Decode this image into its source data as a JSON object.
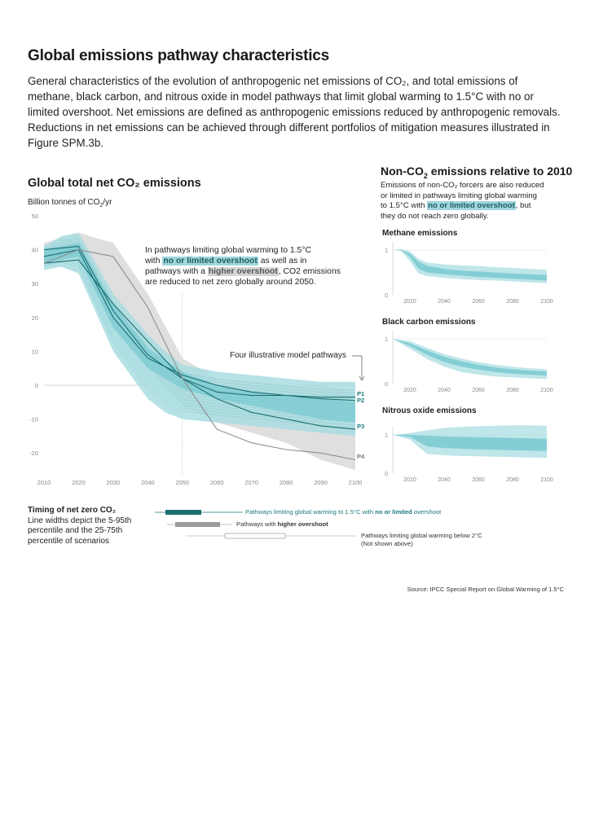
{
  "header": {
    "title": "Global emissions pathway characteristics",
    "intro": "General characteristics of the evolution of anthropogenic net emissions of CO₂, and total emissions of methane, black carbon, and nitrous oxide in model pathways that limit global warming to 1.5°C with no or limited overshoot. Net emissions are defined as anthropogenic emissions reduced by anthropogenic removals. Reductions in net emissions can be achieved through different portfolios of mitigation measures illustrated in Figure SPM.3b."
  },
  "co2_panel": {
    "title": "Global total net CO₂ emissions",
    "unit_prefix": "Billion tonnes of CO",
    "unit_sub": "2",
    "unit_suffix": "/yr",
    "annotation": {
      "line1": "In pathways limiting global warming to 1.5°C",
      "line2_pre": "with ",
      "line2_hl": "no or limited overshoot",
      "line2_post": " as well as in",
      "line3_pre": "pathways with a ",
      "line3_hl": "higher overshoot",
      "line3_post": ", CO2 emissions",
      "line4": "are reduced to net zero globally around 2050."
    },
    "pathways_label": "Four illustrative model pathways"
  },
  "nonco2_panel": {
    "title_pre": "Non-CO",
    "title_sub": "2",
    "title_post": " emissions relative to 2010",
    "desc_line1": "Emissions of non-CO₂ forcers are also reduced",
    "desc_line2": "or limited in pathways limiting global warming",
    "desc_line3_pre": "to 1.5°C with ",
    "desc_line3_hl": "no or limited overshoot",
    "desc_line3_post": ", but",
    "desc_line4": "they do not reach zero globally.",
    "methane_title": "Methane emissions",
    "bc_title": "Black carbon emissions",
    "n2o_title": "Nitrous oxide emissions"
  },
  "legend": {
    "title": "Timing of net zero CO₂",
    "desc_line1": "Line widths depict the 5-95th",
    "desc_line2": "percentile and the 25-75th",
    "desc_line3": "percentile of scenarios",
    "item1_pre": "Pathways limiting global warming to 1.5°C with ",
    "item1_bold": "no or limited",
    "item1_post": " overshoot",
    "item2_pre": "Pathways with ",
    "item2_bold": "higher overshoot",
    "item3_line1": "Pathways limiting global warming below 2°C",
    "item3_line2": "(Not shown above)"
  },
  "source": "Source: IPCC Special Report on Global Warming of 1.5°C",
  "colors": {
    "teal_light": "#a9dde2",
    "teal_mid": "#7ccbd2",
    "teal_dark": "#1b6f70",
    "grey_band": "#dcdcdc",
    "grey_line": "#8d8d8d"
  },
  "chart_data": [
    {
      "type": "area",
      "title": "Global total net CO₂ emissions",
      "ylabel": "Billion tonnes of CO₂/yr",
      "xlim": [
        2010,
        2100
      ],
      "ylim": [
        -25,
        50
      ],
      "x_ticks": [
        2010,
        2020,
        2030,
        2040,
        2050,
        2060,
        2070,
        2080,
        2090,
        2100
      ],
      "y_ticks": [
        -20,
        -10,
        0,
        10,
        20,
        30,
        40,
        50
      ],
      "bands": [
        {
          "name": "higher overshoot 5-95th",
          "color": "grey",
          "x": [
            2010,
            2020,
            2030,
            2040,
            2050,
            2060,
            2070,
            2080,
            2090,
            2100
          ],
          "low": [
            38,
            39,
            23,
            5,
            -6,
            -11,
            -14,
            -17,
            -22,
            -25
          ],
          "high": [
            42,
            45,
            42,
            27,
            8,
            2,
            1,
            0,
            0,
            -2
          ]
        },
        {
          "name": "no or limited overshoot 5-95th",
          "color": "teal_light",
          "x": [
            2010,
            2015,
            2020,
            2030,
            2040,
            2045,
            2050,
            2060,
            2070,
            2080,
            2090,
            2100
          ],
          "low": [
            34,
            35,
            33,
            10,
            -4,
            -8,
            -10,
            -11,
            -12,
            -13,
            -14,
            -15
          ],
          "high": [
            41,
            44,
            45,
            27,
            15,
            10,
            6,
            4,
            3,
            2,
            1,
            1
          ]
        },
        {
          "name": "no or limited overshoot 25-75th",
          "color": "teal_mid",
          "x": [
            2010,
            2020,
            2030,
            2040,
            2050,
            2060,
            2070,
            2080,
            2090,
            2100
          ],
          "low": [
            36,
            38,
            17,
            5,
            -1,
            -4,
            -6,
            -8,
            -10,
            -11
          ],
          "high": [
            40,
            42,
            24,
            11,
            4,
            0,
            -2,
            -3,
            -4,
            -5
          ]
        }
      ],
      "series": [
        {
          "name": "P1",
          "x": [
            2010,
            2020,
            2030,
            2040,
            2050,
            2060,
            2070,
            2080,
            2090,
            2100
          ],
          "values": [
            40,
            41,
            22,
            9,
            2,
            -2,
            -3,
            -3,
            -3.5,
            -3.5
          ]
        },
        {
          "name": "P2",
          "x": [
            2010,
            2020,
            2030,
            2040,
            2050,
            2060,
            2070,
            2080,
            2090,
            2100
          ],
          "values": [
            38,
            40,
            20,
            8,
            3,
            0,
            -2,
            -3,
            -4,
            -4.5
          ]
        },
        {
          "name": "P3",
          "x": [
            2010,
            2020,
            2030,
            2040,
            2050,
            2060,
            2070,
            2080,
            2090,
            2100
          ],
          "values": [
            36,
            37,
            24,
            13,
            2,
            -4,
            -8,
            -10,
            -12,
            -13
          ]
        },
        {
          "name": "P4",
          "x": [
            2010,
            2020,
            2030,
            2040,
            2050,
            2060,
            2070,
            2080,
            2090,
            2100
          ],
          "values": [
            36,
            40,
            38,
            23,
            2,
            -13,
            -17,
            -19,
            -20,
            -22
          ]
        }
      ]
    },
    {
      "type": "area",
      "title": "Methane emissions",
      "xlim": [
        2010,
        2100
      ],
      "ylim": [
        0,
        1
      ],
      "x_ticks": [
        2020,
        2040,
        2060,
        2080,
        2100
      ],
      "y_ticks": [
        0,
        1
      ],
      "bands": [
        {
          "name": "5-95th",
          "x": [
            2010,
            2015,
            2020,
            2025,
            2030,
            2040,
            2050,
            2060,
            2070,
            2080,
            2090,
            2100
          ],
          "low": [
            1,
            0.98,
            0.75,
            0.48,
            0.42,
            0.38,
            0.35,
            0.33,
            0.32,
            0.3,
            0.28,
            0.26
          ],
          "high": [
            1,
            1.02,
            0.97,
            0.8,
            0.72,
            0.68,
            0.66,
            0.64,
            0.62,
            0.6,
            0.58,
            0.56
          ]
        },
        {
          "name": "25-75th",
          "x": [
            2010,
            2015,
            2020,
            2025,
            2030,
            2040,
            2050,
            2060,
            2070,
            2080,
            2090,
            2100
          ],
          "low": [
            1,
            0.99,
            0.85,
            0.58,
            0.5,
            0.46,
            0.43,
            0.4,
            0.38,
            0.36,
            0.34,
            0.32
          ],
          "high": [
            1,
            1.0,
            0.92,
            0.74,
            0.65,
            0.58,
            0.54,
            0.52,
            0.5,
            0.48,
            0.46,
            0.44
          ]
        }
      ]
    },
    {
      "type": "area",
      "title": "Black carbon emissions",
      "xlim": [
        2010,
        2100
      ],
      "ylim": [
        0,
        1
      ],
      "x_ticks": [
        2020,
        2040,
        2060,
        2080,
        2100
      ],
      "y_ticks": [
        0,
        1
      ],
      "bands": [
        {
          "name": "5-95th",
          "x": [
            2010,
            2020,
            2030,
            2040,
            2050,
            2060,
            2070,
            2080,
            2090,
            2100
          ],
          "low": [
            1,
            0.78,
            0.55,
            0.38,
            0.26,
            0.2,
            0.16,
            0.14,
            0.12,
            0.1
          ],
          "high": [
            1,
            0.95,
            0.8,
            0.66,
            0.56,
            0.48,
            0.42,
            0.38,
            0.34,
            0.32
          ]
        },
        {
          "name": "25-75th",
          "x": [
            2010,
            2020,
            2030,
            2040,
            2050,
            2060,
            2070,
            2080,
            2090,
            2100
          ],
          "low": [
            1,
            0.84,
            0.64,
            0.48,
            0.38,
            0.31,
            0.26,
            0.22,
            0.2,
            0.18
          ],
          "high": [
            1,
            0.9,
            0.74,
            0.6,
            0.5,
            0.42,
            0.36,
            0.32,
            0.29,
            0.27
          ]
        }
      ]
    },
    {
      "type": "area",
      "title": "Nitrous oxide emissions",
      "xlim": [
        2010,
        2100
      ],
      "ylim": [
        0,
        1
      ],
      "x_ticks": [
        2020,
        2040,
        2060,
        2080,
        2100
      ],
      "y_ticks": [
        0,
        1
      ],
      "bands": [
        {
          "name": "5-95th",
          "x": [
            2010,
            2020,
            2030,
            2040,
            2050,
            2060,
            2070,
            2080,
            2090,
            2100
          ],
          "low": [
            1,
            0.88,
            0.5,
            0.47,
            0.45,
            0.44,
            0.43,
            0.42,
            0.41,
            0.4
          ],
          "high": [
            1,
            1.05,
            1.12,
            1.18,
            1.21,
            1.23,
            1.24,
            1.25,
            1.25,
            1.24
          ]
        },
        {
          "name": "25-75th",
          "x": [
            2010,
            2020,
            2030,
            2040,
            2050,
            2060,
            2070,
            2080,
            2090,
            2100
          ],
          "low": [
            1,
            0.95,
            0.7,
            0.66,
            0.64,
            0.62,
            0.61,
            0.6,
            0.59,
            0.58
          ],
          "high": [
            1,
            1.0,
            0.98,
            0.96,
            0.95,
            0.94,
            0.93,
            0.92,
            0.91,
            0.9
          ]
        }
      ]
    }
  ]
}
